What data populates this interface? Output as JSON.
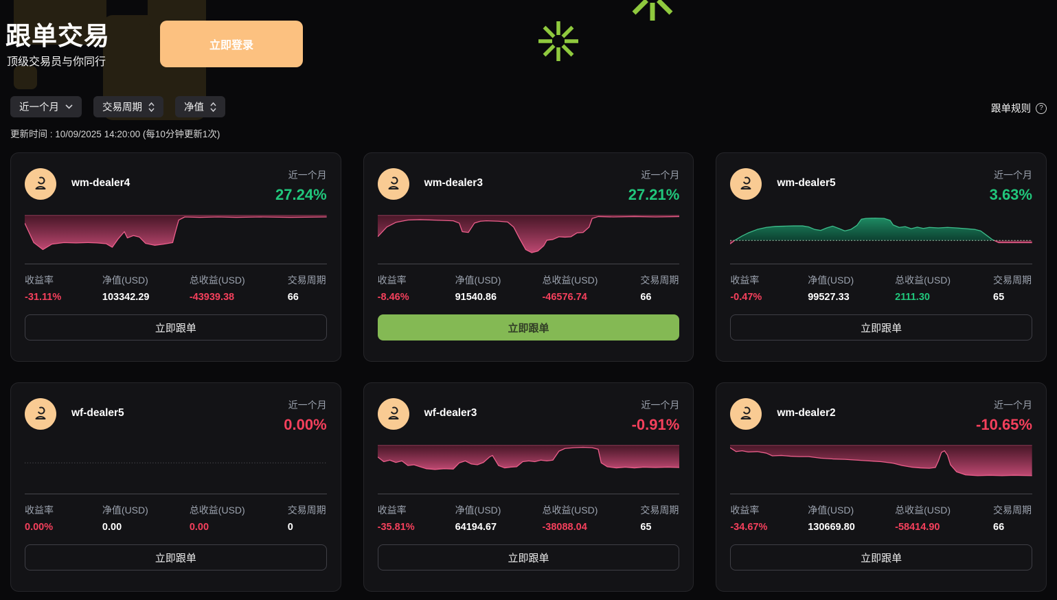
{
  "header": {
    "title": "跟单交易",
    "subtitle": "顶级交易员与你同行",
    "login_button": "立即登录",
    "rules_link": "跟单规则",
    "help_glyph": "?"
  },
  "filters": {
    "period": "近一个月",
    "cycle": "交易周期",
    "net_value": "净值"
  },
  "update_time": "更新时间 : 10/09/2025 14:20:00 (每10分钟更新1次)",
  "stats_labels": {
    "return_rate": "收益率",
    "net_value": "净值(USD)",
    "total_profit": "总收益(USD)",
    "cycle": "交易周期"
  },
  "follow_button": "立即跟单",
  "period_label": "近一个月",
  "colors": {
    "up_green": "#21c77c",
    "down_red": "#f5405c",
    "accent_orange": "#fcc180",
    "accent_green_button": "#84b954",
    "chart_red_line": "#ed5f8c",
    "chart_green_line": "#3dbd8b",
    "asterisk_green": "#8fc93e"
  },
  "dealers": [
    {
      "name": "wm-dealer4",
      "period_return": "27.24%",
      "trend": "up",
      "return_rate": "-31.11%",
      "return_rate_trend": "down",
      "net_value": "103342.29",
      "total_profit": "-43939.38",
      "total_profit_trend": "down",
      "cycle": "66",
      "button_variant": "outline",
      "spark": {
        "baseline": "top",
        "series": [
          {
            "color": "red",
            "points": [
              [
                0,
                20
              ],
              [
                3,
                70
              ],
              [
                6,
                88
              ],
              [
                9,
                74
              ],
              [
                13,
                70
              ],
              [
                17,
                71
              ],
              [
                21,
                70
              ],
              [
                24,
                71
              ],
              [
                27,
                73
              ],
              [
                29,
                82
              ],
              [
                31,
                60
              ],
              [
                33,
                42
              ],
              [
                34,
                58
              ],
              [
                36,
                52
              ],
              [
                38,
                56
              ],
              [
                40,
                72
              ],
              [
                43,
                77
              ],
              [
                46,
                74
              ],
              [
                49,
                70
              ],
              [
                50,
                40
              ],
              [
                51,
                12
              ],
              [
                53,
                4
              ],
              [
                58,
                5
              ],
              [
                64,
                4
              ],
              [
                70,
                5
              ],
              [
                78,
                4
              ],
              [
                88,
                5
              ],
              [
                100,
                4
              ]
            ]
          }
        ]
      }
    },
    {
      "name": "wm-dealer3",
      "period_return": "27.21%",
      "trend": "up",
      "return_rate": "-8.46%",
      "return_rate_trend": "down",
      "net_value": "91540.86",
      "total_profit": "-46576.74",
      "total_profit_trend": "down",
      "cycle": "66",
      "button_variant": "solid-green",
      "spark": {
        "baseline": "top",
        "series": [
          {
            "color": "red",
            "points": [
              [
                0,
                55
              ],
              [
                3,
                30
              ],
              [
                6,
                18
              ],
              [
                10,
                12
              ],
              [
                14,
                11
              ],
              [
                18,
                12
              ],
              [
                22,
                13
              ],
              [
                25,
                14
              ],
              [
                27,
                20
              ],
              [
                28,
                42
              ],
              [
                30,
                44
              ],
              [
                32,
                20
              ],
              [
                34,
                15
              ],
              [
                36,
                14
              ],
              [
                40,
                15
              ],
              [
                43,
                17
              ],
              [
                45,
                30
              ],
              [
                47,
                60
              ],
              [
                49,
                88
              ],
              [
                51,
                96
              ],
              [
                53,
                92
              ],
              [
                55,
                78
              ],
              [
                56,
                64
              ],
              [
                58,
                62
              ],
              [
                60,
                55
              ],
              [
                62,
                56
              ],
              [
                64,
                55
              ],
              [
                66,
                45
              ],
              [
                68,
                44
              ],
              [
                70,
                30
              ],
              [
                71,
                8
              ],
              [
                73,
                3
              ],
              [
                78,
                4
              ],
              [
                85,
                3
              ],
              [
                92,
                4
              ],
              [
                100,
                3
              ]
            ]
          }
        ]
      }
    },
    {
      "name": "wm-dealer5",
      "period_return": "3.63%",
      "trend": "up",
      "return_rate": "-0.47%",
      "return_rate_trend": "down",
      "net_value": "99527.33",
      "total_profit": "2111.30",
      "total_profit_trend": "up",
      "cycle": "65",
      "button_variant": "outline",
      "spark": {
        "baseline": "bottom",
        "series": [
          {
            "color": "red",
            "points": [
              [
                0,
                -14
              ],
              [
                1.5,
                0
              ]
            ]
          },
          {
            "color": "green",
            "points": [
              [
                1.5,
                0
              ],
              [
                4,
                18
              ],
              [
                6,
                30
              ],
              [
                9,
                44
              ],
              [
                12,
                52
              ],
              [
                15,
                56
              ],
              [
                18,
                57
              ],
              [
                21,
                58
              ],
              [
                24,
                58
              ],
              [
                26,
                54
              ],
              [
                28,
                44
              ],
              [
                30,
                40
              ],
              [
                32,
                50
              ],
              [
                34,
                57
              ],
              [
                36,
                48
              ],
              [
                38,
                38
              ],
              [
                40,
                44
              ],
              [
                42,
                60
              ],
              [
                43.5,
                85
              ],
              [
                45,
                88
              ],
              [
                48,
                89
              ],
              [
                51,
                88
              ],
              [
                53,
                80
              ],
              [
                54,
                62
              ],
              [
                56,
                52
              ],
              [
                58,
                55
              ],
              [
                60,
                47
              ],
              [
                62,
                53
              ],
              [
                64,
                48
              ],
              [
                66,
                52
              ],
              [
                69,
                50
              ],
              [
                72,
                52
              ],
              [
                75,
                50
              ],
              [
                78,
                47
              ],
              [
                81,
                44
              ],
              [
                83,
                38
              ],
              [
                85,
                20
              ],
              [
                87,
                2
              ],
              [
                87.5,
                0
              ]
            ]
          },
          {
            "color": "red",
            "points": [
              [
                87.5,
                0
              ],
              [
                89,
                -9
              ],
              [
                100,
                -9
              ]
            ]
          }
        ]
      }
    },
    {
      "name": "wf-dealer5",
      "period_return": "0.00%",
      "trend": "down",
      "return_rate": "0.00%",
      "return_rate_trend": "down",
      "net_value": "0.00",
      "total_profit": "0.00",
      "total_profit_trend": "down",
      "cycle": "0",
      "button_variant": "outline",
      "spark": {
        "baseline": "middle",
        "series": []
      }
    },
    {
      "name": "wf-dealer3",
      "period_return": "-0.91%",
      "trend": "down",
      "return_rate": "-35.81%",
      "return_rate_trend": "down",
      "net_value": "64194.67",
      "total_profit": "-38088.04",
      "total_profit_trend": "down",
      "cycle": "65",
      "button_variant": "outline",
      "spark": {
        "baseline": "top",
        "series": [
          {
            "color": "red",
            "points": [
              [
                0,
                30
              ],
              [
                2,
                42
              ],
              [
                4,
                38
              ],
              [
                6,
                44
              ],
              [
                8,
                40
              ],
              [
                10,
                52
              ],
              [
                12,
                50
              ],
              [
                14,
                55
              ],
              [
                16,
                60
              ],
              [
                19,
                62
              ],
              [
                22,
                60
              ],
              [
                25,
                61
              ],
              [
                27,
                45
              ],
              [
                29,
                40
              ],
              [
                31,
                48
              ],
              [
                33,
                50
              ],
              [
                35,
                44
              ],
              [
                37,
                30
              ],
              [
                38,
                26
              ],
              [
                40,
                52
              ],
              [
                42,
                58
              ],
              [
                44,
                56
              ],
              [
                46,
                55
              ],
              [
                48,
                42
              ],
              [
                50,
                40
              ],
              [
                52,
                42
              ],
              [
                54,
                38
              ],
              [
                56,
                40
              ],
              [
                58,
                38
              ],
              [
                60,
                15
              ],
              [
                62,
                8
              ],
              [
                65,
                6
              ],
              [
                68,
                5
              ],
              [
                71,
                6
              ],
              [
                73,
                10
              ],
              [
                74,
                45
              ],
              [
                76,
                55
              ],
              [
                79,
                58
              ],
              [
                82,
                56
              ],
              [
                85,
                58
              ],
              [
                88,
                56
              ],
              [
                92,
                57
              ],
              [
                96,
                56
              ],
              [
                100,
                57
              ]
            ]
          }
        ]
      }
    },
    {
      "name": "wm-dealer2",
      "period_return": "-10.65%",
      "trend": "down",
      "return_rate": "-34.67%",
      "return_rate_trend": "down",
      "net_value": "130669.80",
      "total_profit": "-58414.90",
      "total_profit_trend": "down",
      "cycle": "66",
      "button_variant": "outline",
      "spark": {
        "baseline": "top",
        "series": [
          {
            "color": "red",
            "points": [
              [
                0,
                6
              ],
              [
                2,
                16
              ],
              [
                4,
                14
              ],
              [
                6,
                17
              ],
              [
                9,
                16
              ],
              [
                12,
                20
              ],
              [
                14,
                27
              ],
              [
                17,
                26
              ],
              [
                20,
                28
              ],
              [
                23,
                29
              ],
              [
                26,
                29
              ],
              [
                30,
                33
              ],
              [
                34,
                35
              ],
              [
                38,
                36
              ],
              [
                42,
                38
              ],
              [
                46,
                40
              ],
              [
                50,
                42
              ],
              [
                54,
                46
              ],
              [
                57,
                52
              ],
              [
                60,
                56
              ],
              [
                63,
                58
              ],
              [
                66,
                59
              ],
              [
                68,
                57
              ],
              [
                69,
                40
              ],
              [
                70,
                18
              ],
              [
                71,
                14
              ],
              [
                72,
                25
              ],
              [
                73,
                50
              ],
              [
                75,
                68
              ],
              [
                78,
                76
              ],
              [
                82,
                78
              ],
              [
                86,
                77
              ],
              [
                90,
                78
              ],
              [
                94,
                77
              ],
              [
                100,
                78
              ]
            ]
          }
        ]
      }
    }
  ]
}
